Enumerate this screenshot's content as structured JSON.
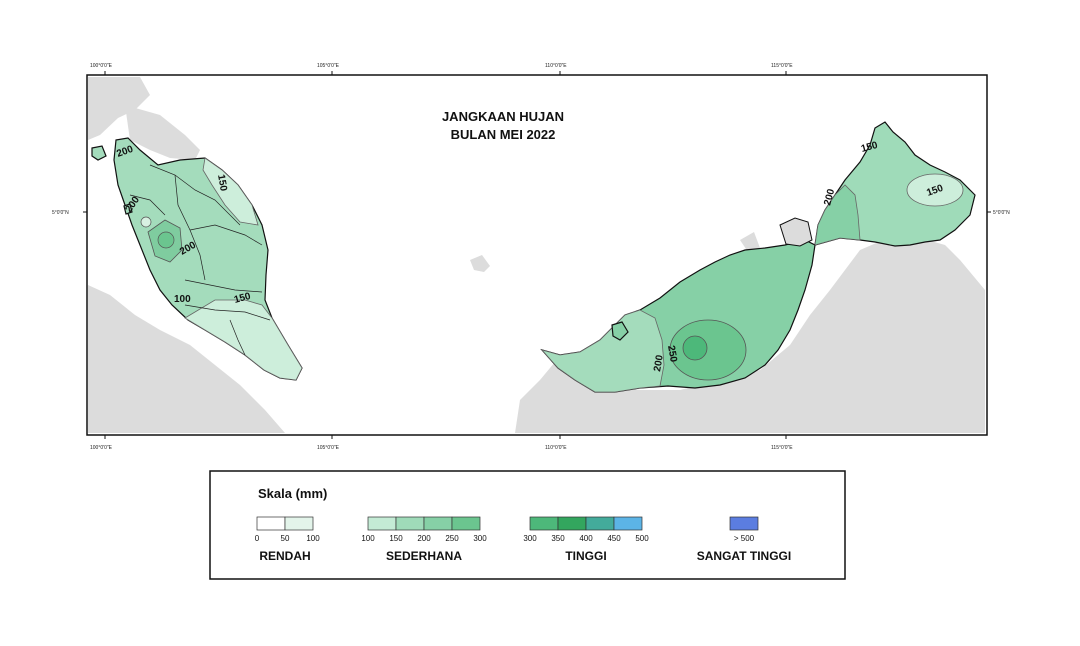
{
  "map": {
    "title_line1": "JANGKAAN HUJAN",
    "title_line2": "BULAN MEI 2022",
    "longitude_labels": [
      "100°0'0\"E",
      "105°0'0\"E",
      "110°0'0\"E",
      "115°0'0\"E"
    ],
    "latitude_label": "5°0'0\"N",
    "contour_labels": {
      "pm_200_north": "200",
      "pm_200_west": "200",
      "pm_200_center": "200",
      "pm_150_east": "150",
      "pm_150_south": "150",
      "pm_100": "100",
      "sabah_150_north": "150",
      "sabah_150_east": "150",
      "sabah_200": "200",
      "sarawak_200": "200",
      "sarawak_250": "250"
    }
  },
  "legend": {
    "title": "Skala (mm)",
    "groups": [
      {
        "name": "RENDAH",
        "ticks": [
          "0",
          "50",
          "100"
        ],
        "colors": [
          "#ffffff",
          "#e3f4ea"
        ]
      },
      {
        "name": "SEDERHANA",
        "ticks": [
          "100",
          "150",
          "200",
          "250",
          "300"
        ],
        "colors": [
          "#c4ebd5",
          "#9fdbb9",
          "#86d0a6",
          "#6bc58f"
        ]
      },
      {
        "name": "TINGGI",
        "ticks": [
          "300",
          "350",
          "400",
          "450",
          "500"
        ],
        "colors": [
          "#4db87a",
          "#33a65e",
          "#43ab9b",
          "#5cb4e6"
        ]
      },
      {
        "name": "SANGAT TINGGI",
        "ticks": [
          "> 500"
        ],
        "colors": [
          "#5b7de0"
        ]
      }
    ]
  }
}
